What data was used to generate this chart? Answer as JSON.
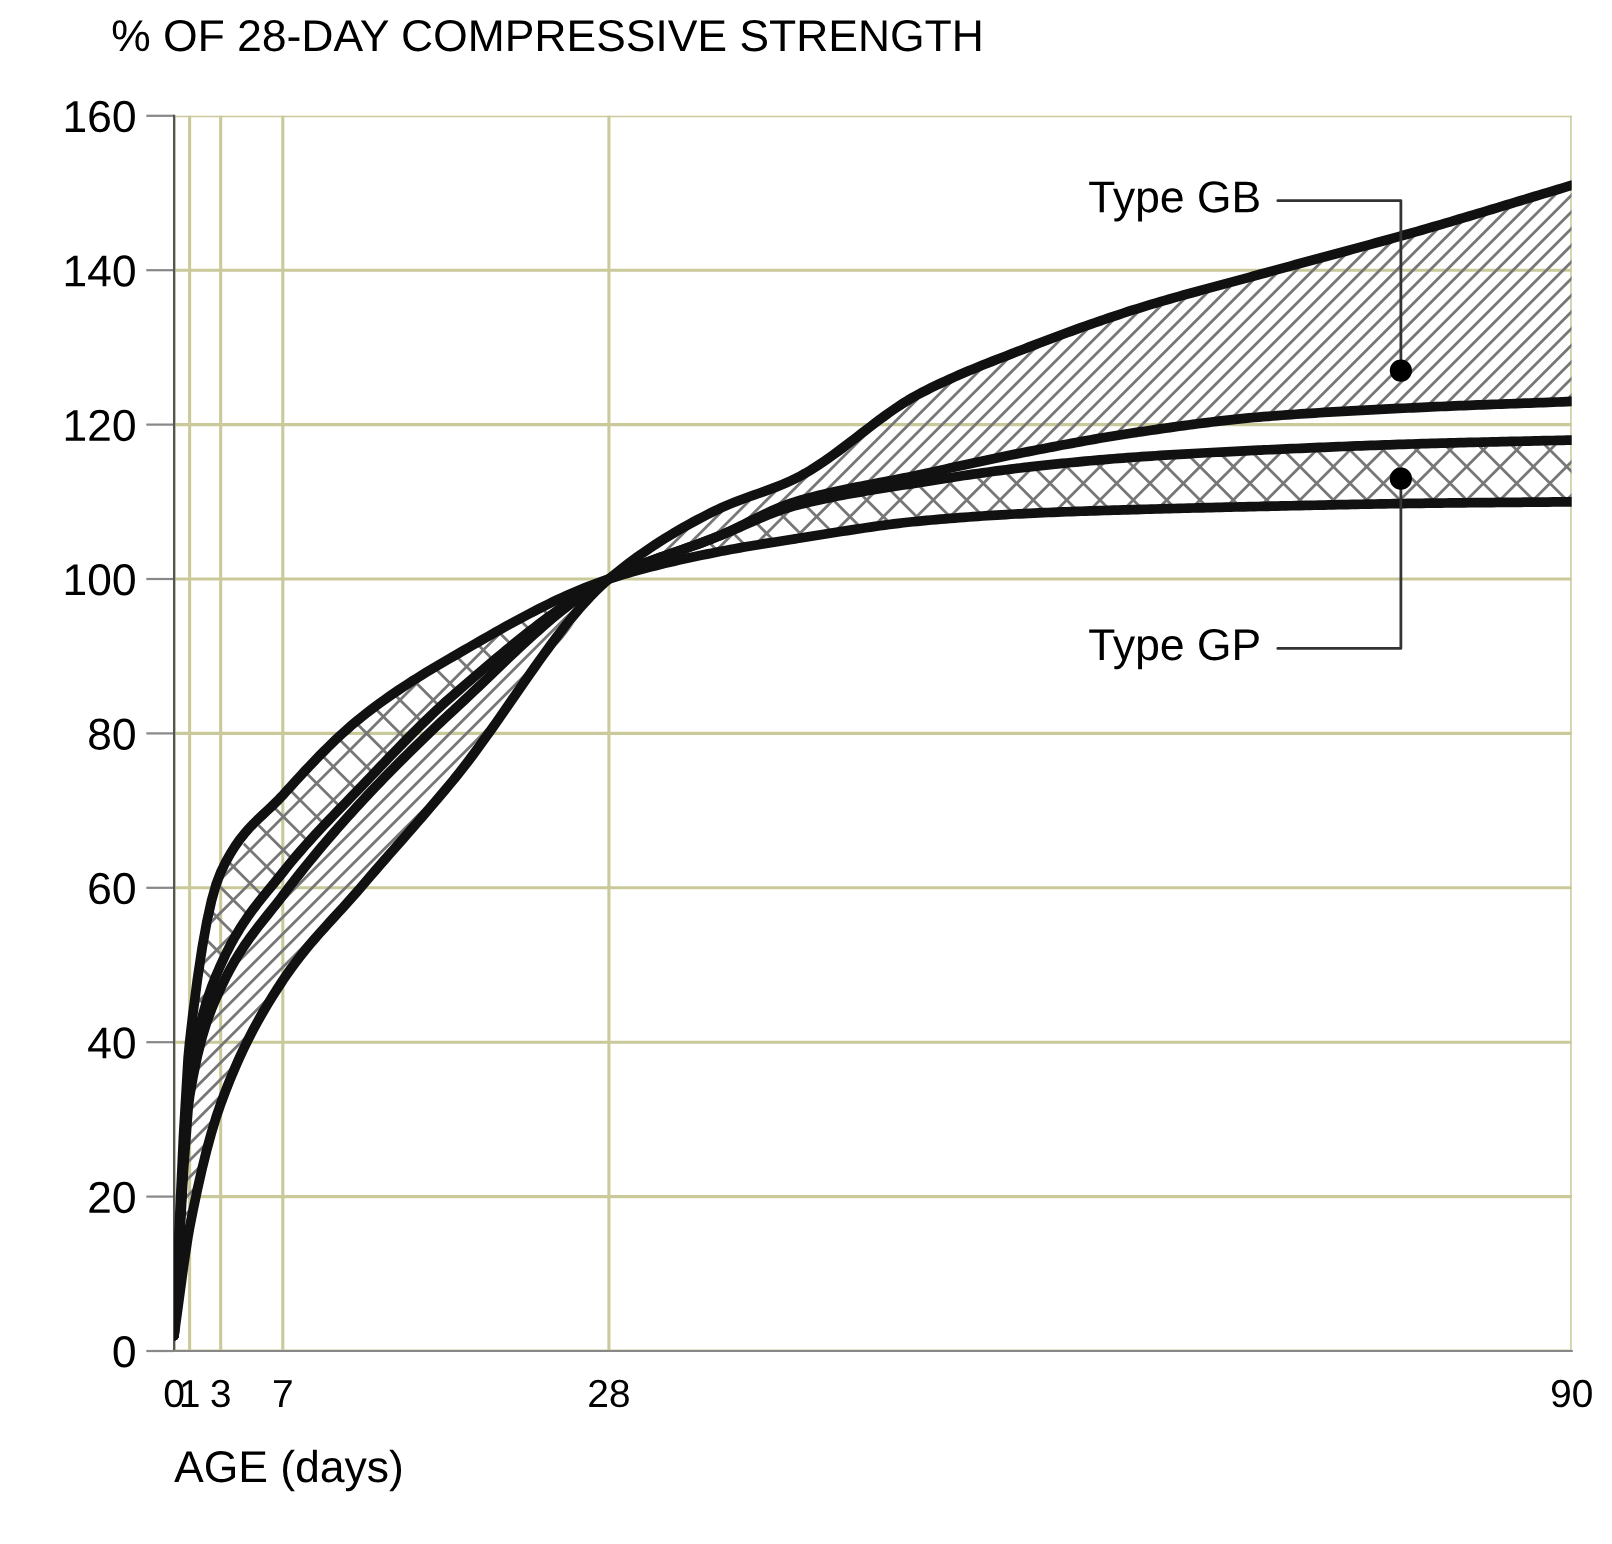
{
  "chart_data": {
    "type": "line",
    "ylabel": "% OF 28-DAY COMPRESSIVE STRENGTH",
    "xlabel": "AGE (days)",
    "x": [
      0,
      1,
      3,
      7,
      12,
      18,
      28,
      35,
      40,
      48,
      55,
      62,
      70,
      80,
      90
    ],
    "series": [
      {
        "color": "#111111",
        "values": [
          2,
          40,
          62,
          72,
          82,
          90,
          100,
          103.5,
          105.2,
          107.5,
          108.5,
          109,
          109.4,
          109.8,
          110
        ]
      },
      {
        "color": "#111111",
        "values": [
          2,
          35,
          50,
          62,
          73,
          85,
          100,
          105.5,
          109.5,
          112.5,
          114.5,
          115.8,
          116.7,
          117.5,
          118
        ],
        "lower": [
          2,
          40,
          62,
          72,
          82,
          90,
          100,
          103.5,
          105.2,
          107.5,
          108.5,
          109,
          109.4,
          109.8,
          110
        ],
        "upper": [
          2,
          35,
          50,
          62,
          73,
          85,
          100,
          105.5,
          109.5,
          112.5,
          114.5,
          115.8,
          116.7,
          117.5,
          118
        ]
      },
      {
        "color": "#111111",
        "values": [
          2,
          33,
          47,
          59,
          71,
          83,
          100,
          105.5,
          110,
          113.5,
          116.5,
          119,
          121,
          122.2,
          123
        ]
      },
      {
        "color": "#111111",
        "values": [
          2,
          16,
          32,
          48,
          60,
          74,
          100,
          109,
          113,
          124,
          130,
          135,
          139.5,
          145,
          151
        ],
        "lower": [
          2,
          33,
          47,
          59,
          71,
          83,
          100,
          105.5,
          110,
          113.5,
          116.5,
          119,
          121,
          122.2,
          123
        ],
        "upper": [
          2,
          16,
          32,
          48,
          60,
          74,
          100,
          109,
          113,
          124,
          130,
          135,
          139.5,
          145,
          151
        ]
      }
    ],
    "annotations": [
      {
        "text": "Type GB",
        "x": 79,
        "y": 127
      },
      {
        "text": "Type GP",
        "x": 79,
        "y": 113
      }
    ],
    "xlim": [
      0,
      90
    ],
    "ylim": [
      0,
      160
    ],
    "xticks": [
      0,
      1,
      3,
      7,
      28,
      90
    ],
    "yticks": [
      0,
      20,
      40,
      60,
      80,
      100,
      120,
      140,
      160
    ],
    "grid": true,
    "marker": "none",
    "line_style": "solid"
  }
}
